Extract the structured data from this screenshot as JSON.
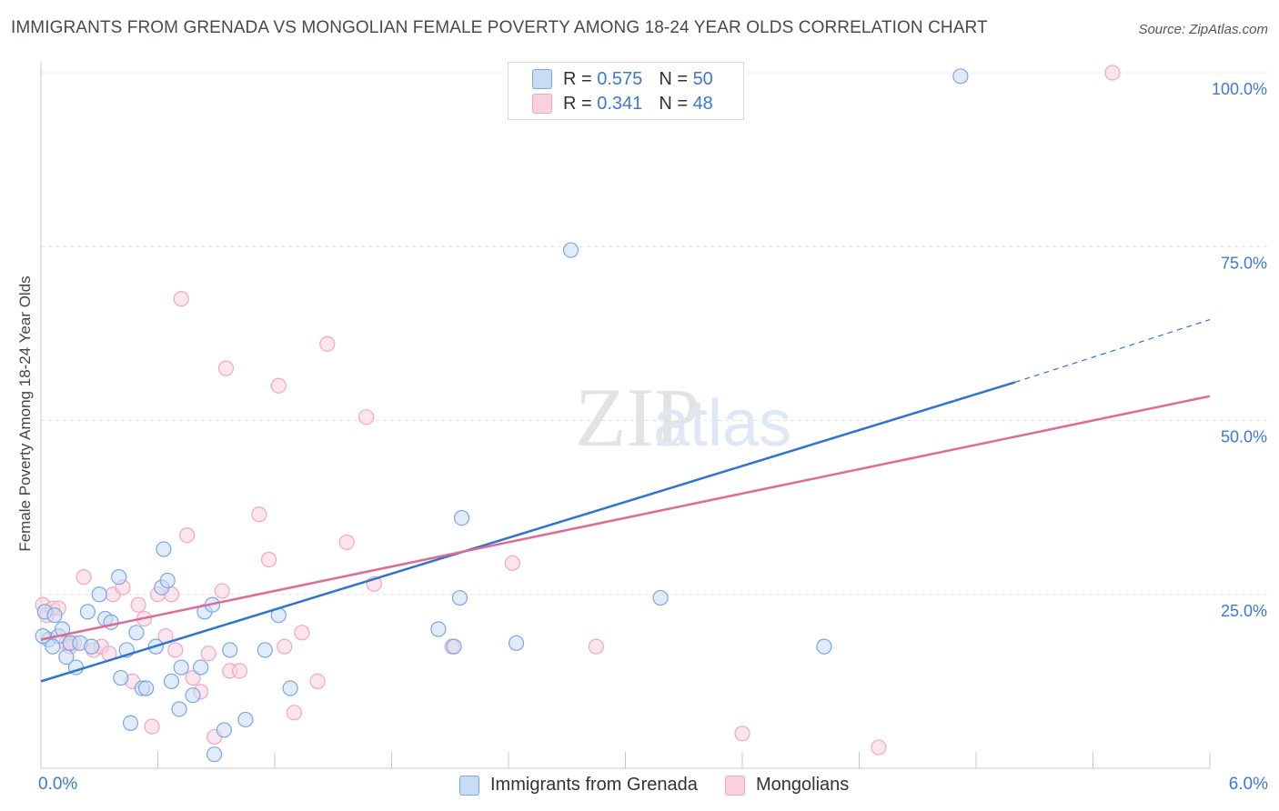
{
  "title": "IMMIGRANTS FROM GRENADA VS MONGOLIAN FEMALE POVERTY AMONG 18-24 YEAR OLDS CORRELATION CHART",
  "source": "Source: ZipAtlas.com",
  "watermark": {
    "zip": "ZIP",
    "atlas": "atlas"
  },
  "legend_top": [
    {
      "r_label": "R =",
      "r_value": "0.575",
      "n_label": "N =",
      "n_value": "50"
    },
    {
      "r_label": "R =",
      "r_value": "0.341",
      "n_label": "N =",
      "n_value": "48"
    }
  ],
  "chart_data": {
    "type": "scatter",
    "xlabel": "",
    "ylabel": "Female Poverty Among 18-24 Year Olds",
    "xlim": [
      0,
      6
    ],
    "ylim": [
      0,
      100
    ],
    "x_tick_labels": [
      "0.0%",
      "6.0%"
    ],
    "y_tick_labels": [
      "25.0%",
      "50.0%",
      "75.0%",
      "100.0%"
    ],
    "y_ticks": [
      25,
      50,
      75,
      100
    ],
    "grid": true,
    "legend_position": "bottom",
    "colors": {
      "grenada": "#7aa6e8",
      "grenada_line": "#2f74d0",
      "mongolians": "#f2a7c0",
      "mongolians_line": "#e06a94",
      "tick_text": "#3d78d8"
    },
    "series": [
      {
        "name": "Immigrants from Grenada",
        "r": 0.575,
        "n": 50,
        "trend": {
          "x": [
            0,
            5.0
          ],
          "y": [
            12.5,
            55.5
          ],
          "dashed_to": [
            6.0,
            64.5
          ]
        },
        "points": [
          [
            0.02,
            22.5
          ],
          [
            0.04,
            18.5
          ],
          [
            0.07,
            22
          ],
          [
            0.09,
            19
          ],
          [
            0.11,
            20
          ],
          [
            0.13,
            16
          ],
          [
            0.15,
            18
          ],
          [
            0.18,
            14.5
          ],
          [
            0.2,
            18
          ],
          [
            0.24,
            22.5
          ],
          [
            0.26,
            17.5
          ],
          [
            0.3,
            25
          ],
          [
            0.33,
            21.5
          ],
          [
            0.36,
            21
          ],
          [
            0.4,
            27.5
          ],
          [
            0.41,
            13
          ],
          [
            0.44,
            17
          ],
          [
            0.46,
            6.5
          ],
          [
            0.49,
            19.5
          ],
          [
            0.52,
            11.5
          ],
          [
            0.54,
            11.5
          ],
          [
            0.59,
            17.5
          ],
          [
            0.62,
            26
          ],
          [
            0.63,
            31.5
          ],
          [
            0.65,
            27
          ],
          [
            0.67,
            12.5
          ],
          [
            0.71,
            8.5
          ],
          [
            0.72,
            14.5
          ],
          [
            0.78,
            10.5
          ],
          [
            0.82,
            14.5
          ],
          [
            0.84,
            22.5
          ],
          [
            0.88,
            23.5
          ],
          [
            0.89,
            2
          ],
          [
            0.94,
            5.5
          ],
          [
            0.97,
            17
          ],
          [
            1.05,
            7
          ],
          [
            1.15,
            17
          ],
          [
            1.22,
            22
          ],
          [
            1.28,
            11.5
          ],
          [
            2.04,
            20
          ],
          [
            2.12,
            17.5
          ],
          [
            2.15,
            24.5
          ],
          [
            2.16,
            36
          ],
          [
            2.44,
            18
          ],
          [
            2.72,
            74.5
          ],
          [
            3.18,
            24.5
          ],
          [
            4.02,
            17.5
          ],
          [
            4.72,
            99.5
          ],
          [
            0.01,
            19
          ],
          [
            0.06,
            17.5
          ]
        ]
      },
      {
        "name": "Mongolians",
        "r": 0.341,
        "n": 48,
        "trend": {
          "x": [
            0,
            6.0
          ],
          "y": [
            18.5,
            53.5
          ]
        },
        "points": [
          [
            0.01,
            23.5
          ],
          [
            0.03,
            22
          ],
          [
            0.06,
            23
          ],
          [
            0.09,
            23
          ],
          [
            0.13,
            18
          ],
          [
            0.17,
            18
          ],
          [
            0.22,
            27.5
          ],
          [
            0.27,
            17
          ],
          [
            0.31,
            17.5
          ],
          [
            0.35,
            16.5
          ],
          [
            0.37,
            25
          ],
          [
            0.42,
            26
          ],
          [
            0.47,
            12.5
          ],
          [
            0.5,
            23.5
          ],
          [
            0.53,
            21.5
          ],
          [
            0.57,
            6
          ],
          [
            0.6,
            25
          ],
          [
            0.64,
            19
          ],
          [
            0.67,
            25
          ],
          [
            0.69,
            17
          ],
          [
            0.72,
            67.5
          ],
          [
            0.75,
            33.5
          ],
          [
            0.78,
            13
          ],
          [
            0.82,
            11
          ],
          [
            0.86,
            16.5
          ],
          [
            0.89,
            4.5
          ],
          [
            0.93,
            25.5
          ],
          [
            0.95,
            57.5
          ],
          [
            0.97,
            14
          ],
          [
            1.02,
            14
          ],
          [
            1.12,
            36.5
          ],
          [
            1.17,
            30
          ],
          [
            1.22,
            55
          ],
          [
            1.25,
            17.5
          ],
          [
            1.3,
            8
          ],
          [
            1.34,
            19.5
          ],
          [
            1.42,
            12.5
          ],
          [
            1.47,
            61
          ],
          [
            1.57,
            32.5
          ],
          [
            1.67,
            50.5
          ],
          [
            1.71,
            26.5
          ],
          [
            2.11,
            17.5
          ],
          [
            2.42,
            29.5
          ],
          [
            2.85,
            17.5
          ],
          [
            3.6,
            5
          ],
          [
            4.3,
            3
          ],
          [
            5.5,
            100
          ],
          [
            0.15,
            17.5
          ]
        ]
      }
    ]
  }
}
